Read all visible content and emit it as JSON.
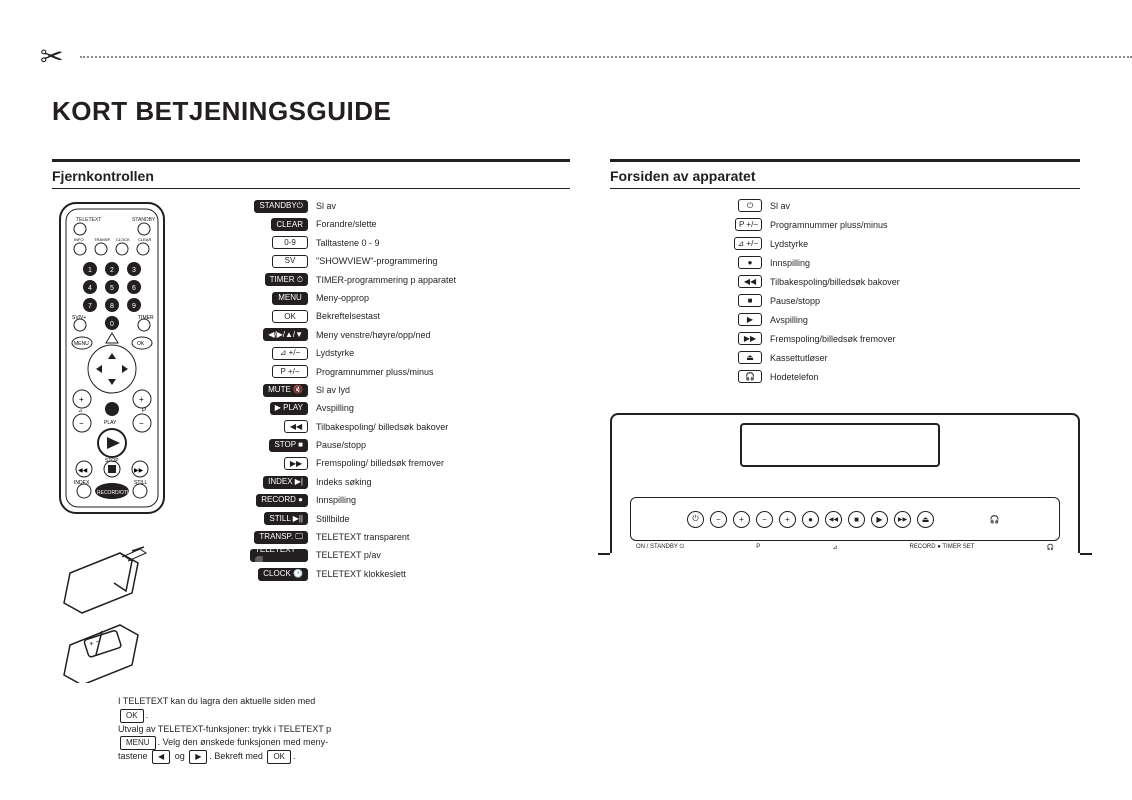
{
  "title": "KORT BETJENINGSGUIDE",
  "left_section": "Fjernkontrollen",
  "right_section": "Forsiden av apparatet",
  "remote_buttons": [
    {
      "label": "STANDBY⏻",
      "solid": true,
      "desc": "Sl av"
    },
    {
      "label": "CLEAR",
      "solid": true,
      "desc": "Forandre/slette"
    },
    {
      "label": "0-9",
      "solid": false,
      "desc": "Talltastene 0 - 9"
    },
    {
      "label": "SV",
      "solid": false,
      "desc": "\"SHOWVIEW\"-programmering"
    },
    {
      "label": "TIMER ⏱",
      "solid": true,
      "desc": "TIMER-programmering p apparatet"
    },
    {
      "label": "MENU",
      "solid": true,
      "desc": "Meny-opprop"
    },
    {
      "label": "OK",
      "solid": false,
      "desc": "Bekreftelsestast"
    },
    {
      "label": "◀/▶/▲/▼",
      "solid": true,
      "desc": "Meny venstre/høyre/opp/ned"
    },
    {
      "label": "⊿ +/−",
      "solid": false,
      "desc": "Lydstyrke"
    },
    {
      "label": "P +/−",
      "solid": false,
      "desc": "Programnummer pluss/minus"
    },
    {
      "label": "MUTE 🔇",
      "solid": true,
      "desc": "Sl av lyd"
    },
    {
      "label": "▶ PLAY",
      "solid": true,
      "desc": "Avspilling"
    },
    {
      "label": "◀◀",
      "solid": false,
      "icon": true,
      "desc": "Tilbakespoling/ billedsøk bakover"
    },
    {
      "label": "STOP ■",
      "solid": true,
      "desc": "Pause/stopp"
    },
    {
      "label": "▶▶",
      "solid": false,
      "icon": true,
      "desc": "Fremspoling/ billedsøk fremover"
    },
    {
      "label": "INDEX ▶|",
      "solid": true,
      "desc": "Indeks søking"
    },
    {
      "label": "RECORD ●",
      "solid": true,
      "desc": "Innspilling"
    },
    {
      "label": "STILL ▶||",
      "solid": true,
      "desc": "Stillbilde"
    },
    {
      "label": "TRANSP. 🖵",
      "solid": true,
      "desc": "TELETEXT transparent"
    },
    {
      "label": "TELETEXT 🗐",
      "solid": true,
      "wide": true,
      "desc": "TELETEXT p/av"
    },
    {
      "label": "CLOCK 🕐",
      "solid": true,
      "desc": "TELETEXT klokkeslett"
    }
  ],
  "panel_buttons": [
    {
      "icon": "⏻",
      "desc": "Sl av"
    },
    {
      "icon": "P +/−",
      "desc": "Programnummer pluss/minus"
    },
    {
      "icon": "⊿ +/−",
      "desc": "Lydstyrke"
    },
    {
      "icon": "●",
      "desc": "Innspilling"
    },
    {
      "icon": "◀◀",
      "desc": "Tilbakespoling/billedsøk bakover"
    },
    {
      "icon": "■",
      "desc": "Pause/stopp"
    },
    {
      "icon": "▶",
      "desc": "Avspilling"
    },
    {
      "icon": "▶▶",
      "desc": "Fremspoling/billedsøk fremover"
    },
    {
      "icon": "⏏",
      "desc": "Kassettutløser"
    },
    {
      "icon": "🎧",
      "desc": "Hodetelefon"
    }
  ],
  "note_line1": "I TELETEXT kan du lagra den aktuelle siden med",
  "note_ok": "OK",
  "note_line2a": "Utvalg av TELETEXT-funksjoner: trykk i TELETEXT p",
  "note_menu": "MENU",
  "note_line2b": ". Velg den ønskede funksjonen med meny-",
  "note_line3a": "tastene",
  "note_left": "◀",
  "note_og": "og",
  "note_right": "▶",
  "note_line3b": ". Bekreft med",
  "note_ok2": "OK",
  "vcr_labels": {
    "left": "ON / STANDBY ⏻",
    "mid": "P",
    "vol": "⊿",
    "rec": "RECORD ● TIMER SET",
    "hp": "🎧"
  }
}
